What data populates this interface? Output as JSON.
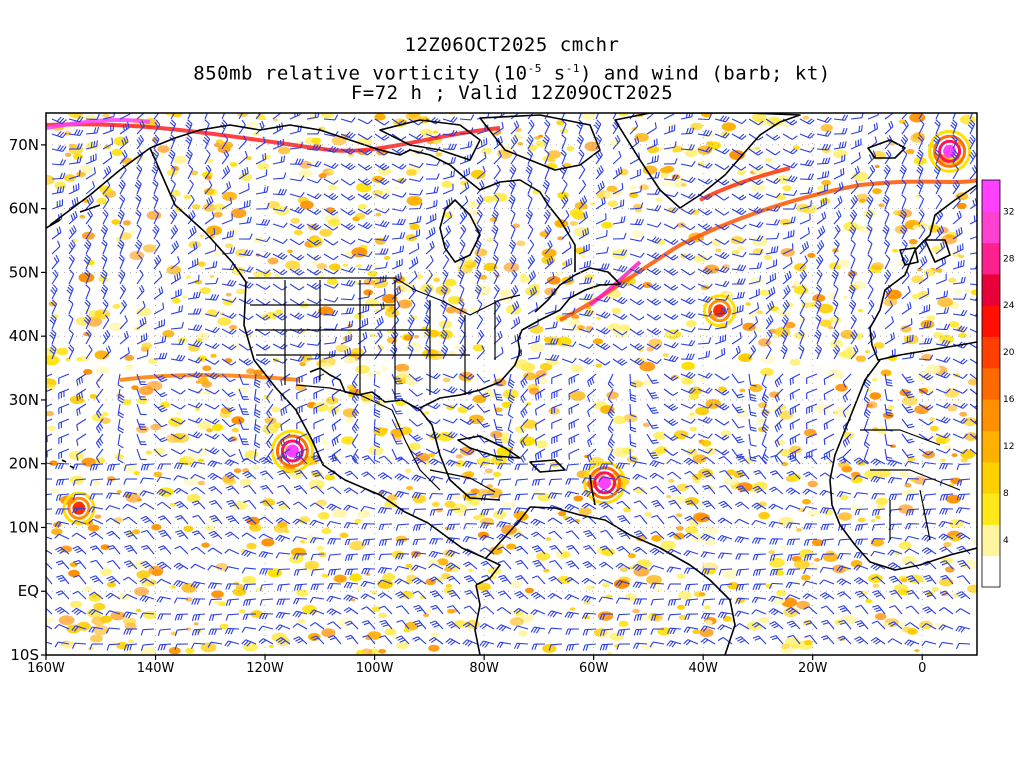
{
  "title": {
    "line1": "12Z06OCT2025 cmchr",
    "line2_prefix": "850mb relative vorticity (10",
    "line2_exp1": "-5",
    "line2_mid": " s",
    "line2_exp2": "-1",
    "line2_suffix": ") and wind (barb; kt)",
    "line3": "F=72 h ; Valid 12Z09OCT2025"
  },
  "map": {
    "lon_range": [
      -160,
      10
    ],
    "lat_range": [
      -10,
      75
    ],
    "lat_labels": [
      {
        "lat": 70,
        "text": "70N"
      },
      {
        "lat": 60,
        "text": "60N"
      },
      {
        "lat": 50,
        "text": "50N"
      },
      {
        "lat": 40,
        "text": "40N"
      },
      {
        "lat": 30,
        "text": "30N"
      },
      {
        "lat": 20,
        "text": "20N"
      },
      {
        "lat": 10,
        "text": "10N"
      },
      {
        "lat": 0,
        "text": "EQ"
      },
      {
        "lat": -10,
        "text": "10S"
      }
    ],
    "lon_labels": [
      {
        "lon": -160,
        "text": "160W"
      },
      {
        "lon": -140,
        "text": "140W"
      },
      {
        "lon": -120,
        "text": "120W"
      },
      {
        "lon": -100,
        "text": "100W"
      },
      {
        "lon": -80,
        "text": "80W"
      },
      {
        "lon": -60,
        "text": "60W"
      },
      {
        "lon": -40,
        "text": "40W"
      },
      {
        "lon": -20,
        "text": "20W"
      },
      {
        "lon": 0,
        "text": "0"
      }
    ],
    "barb_color": "#2a3de0",
    "coast_color": "#000000",
    "vortices": [
      {
        "name": "pacific-hurricane",
        "lon": -115,
        "lat": 22,
        "strength": "high"
      },
      {
        "name": "atlantic-storm",
        "lon": -58,
        "lat": 17,
        "strength": "high"
      },
      {
        "name": "north-atlantic-low",
        "lon": -37,
        "lat": 44,
        "strength": "medium"
      },
      {
        "name": "arctic-low",
        "lon": 5,
        "lat": 69,
        "strength": "high"
      },
      {
        "name": "central-pacific-low",
        "lon": -154,
        "lat": 13,
        "strength": "medium"
      }
    ]
  },
  "colorbar": {
    "labels": [
      "4",
      "8",
      "12",
      "16",
      "20",
      "24",
      "28",
      "32"
    ],
    "colors": [
      "#ffffff",
      "#fff5a0",
      "#ffe81a",
      "#ffd000",
      "#ffb000",
      "#ff9000",
      "#ff6a00",
      "#ff4000",
      "#ff1000",
      "#e8003a",
      "#ff2090",
      "#ff40d0",
      "#ff40ff"
    ]
  }
}
